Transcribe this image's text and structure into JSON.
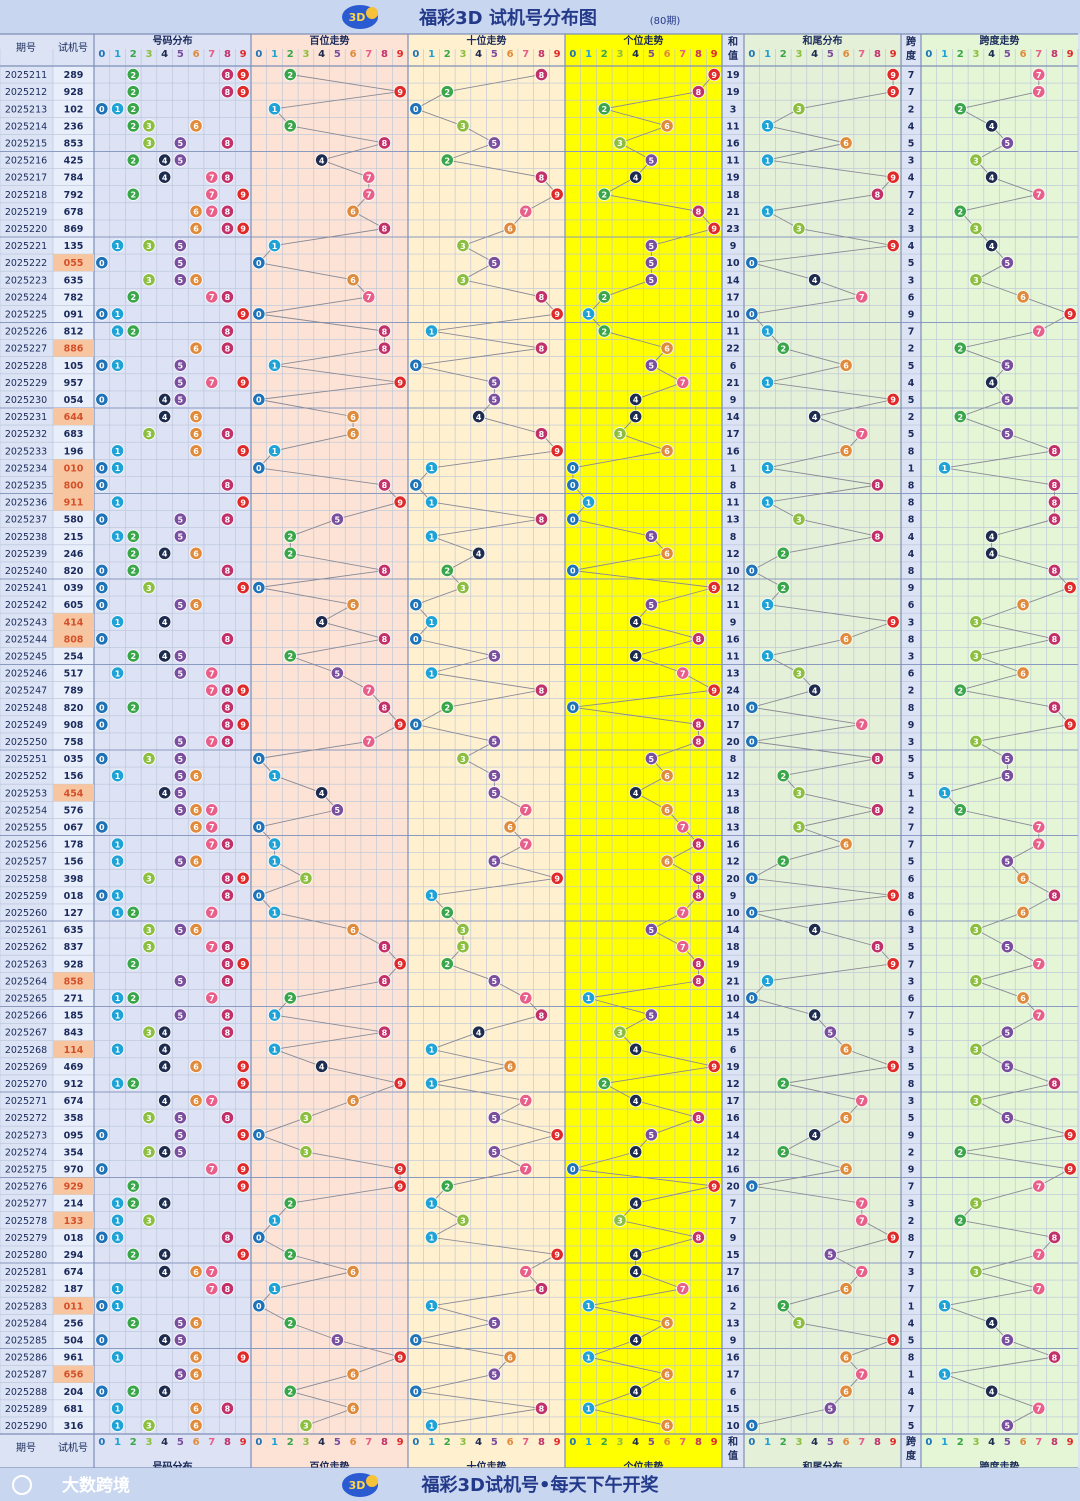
{
  "header": {
    "title": "福彩3D 试机号分布图",
    "subtitle": "(80期)",
    "logo_text": "3D"
  },
  "footer": {
    "slogan": "福彩3D试机号•每天下午开奖",
    "watermark": "大数跨境"
  },
  "columns": {
    "period": "期号",
    "number": "试机号",
    "dist": "号码分布",
    "hundreds": "百位走势",
    "tens": "十位走势",
    "units": "个位走势",
    "sum": "和值",
    "sum_tail": "和尾分布",
    "span": "跨度",
    "span_trend": "跨度走势",
    "digits": [
      "0",
      "1",
      "2",
      "3",
      "4",
      "5",
      "6",
      "7",
      "8",
      "9"
    ]
  },
  "colors": {
    "d0": "#1e73b8",
    "d1": "#1fa3d6",
    "d2": "#3aa64a",
    "d3": "#8cbf3f",
    "d4": "#1d2b4f",
    "d5": "#7a4e9e",
    "d6": "#e08a3c",
    "d7": "#e8608a",
    "d8": "#c2306a",
    "d9": "#e02a2a",
    "bg_dist": "#dde3f5",
    "bg_hund": "#fce3d6",
    "bg_tens": "#fff0d0",
    "bg_units": "#ffff00",
    "bg_sumtail": "#e5f0d8",
    "bg_span": "#e4f6d6",
    "highlight_number": "#f7c6a0"
  },
  "chart_data": {
    "type": "table",
    "title": "福彩3D 试机号分布图",
    "periods": [
      "2025211",
      "2025212",
      "2025213",
      "2025214",
      "2025215",
      "2025216",
      "2025217",
      "2025218",
      "2025219",
      "2025220",
      "2025221",
      "2025222",
      "2025223",
      "2025224",
      "2025225",
      "2025226",
      "2025227",
      "2025228",
      "2025229",
      "2025230",
      "2025231",
      "2025232",
      "2025233",
      "2025234",
      "2025235",
      "2025236",
      "2025237",
      "2025238",
      "2025239",
      "2025240",
      "2025241",
      "2025242",
      "2025243",
      "2025244",
      "2025245",
      "2025246",
      "2025247",
      "2025248",
      "2025249",
      "2025250",
      "2025251",
      "2025252",
      "2025253",
      "2025254",
      "2025255",
      "2025256",
      "2025257",
      "2025258",
      "2025259",
      "2025260",
      "2025261",
      "2025262",
      "2025263",
      "2025264",
      "2025265",
      "2025266",
      "2025267",
      "2025268",
      "2025269",
      "2025270",
      "2025271",
      "2025272",
      "2025273",
      "2025274",
      "2025275",
      "2025276",
      "2025277",
      "2025278",
      "2025279",
      "2025280",
      "2025281",
      "2025282",
      "2025283",
      "2025284",
      "2025285",
      "2025286",
      "2025287",
      "2025288",
      "2025289",
      "2025290"
    ],
    "numbers": [
      "289",
      "928",
      "102",
      "236",
      "853",
      "425",
      "784",
      "792",
      "678",
      "869",
      "135",
      "055",
      "635",
      "782",
      "091",
      "812",
      "886",
      "105",
      "957",
      "054",
      "644",
      "683",
      "196",
      "010",
      "800",
      "911",
      "580",
      "215",
      "246",
      "820",
      "039",
      "605",
      "414",
      "808",
      "254",
      "517",
      "789",
      "820",
      "908",
      "758",
      "035",
      "156",
      "454",
      "576",
      "067",
      "178",
      "156",
      "398",
      "018",
      "127",
      "635",
      "837",
      "928",
      "858",
      "271",
      "185",
      "843",
      "114",
      "469",
      "912",
      "674",
      "358",
      "095",
      "354",
      "970",
      "929",
      "214",
      "133",
      "018",
      "294",
      "674",
      "187",
      "011",
      "256",
      "504",
      "961",
      "656",
      "204",
      "681",
      "316"
    ],
    "sums": [
      19,
      19,
      3,
      11,
      16,
      11,
      19,
      18,
      21,
      23,
      9,
      10,
      14,
      17,
      10,
      11,
      22,
      6,
      21,
      9,
      14,
      17,
      16,
      1,
      8,
      11,
      13,
      8,
      12,
      10,
      12,
      11,
      9,
      16,
      11,
      13,
      24,
      10,
      17,
      20,
      8,
      12,
      13,
      18,
      13,
      16,
      12,
      20,
      9,
      10,
      14,
      18,
      19,
      21,
      10,
      14,
      15,
      6,
      19,
      12,
      17,
      16,
      14,
      12,
      16,
      20,
      7,
      7,
      9,
      15,
      17,
      16,
      2,
      13,
      9,
      16,
      17,
      6,
      15,
      10
    ],
    "spans": [
      7,
      7,
      2,
      4,
      5,
      3,
      4,
      7,
      2,
      3,
      4,
      5,
      3,
      6,
      9,
      7,
      2,
      5,
      4,
      5,
      2,
      5,
      8,
      1,
      8,
      8,
      8,
      4,
      4,
      8,
      9,
      6,
      3,
      8,
      3,
      6,
      2,
      8,
      9,
      3,
      5,
      5,
      1,
      2,
      7,
      7,
      5,
      6,
      8,
      6,
      3,
      5,
      7,
      3,
      6,
      7,
      5,
      3,
      5,
      8,
      3,
      5,
      9,
      2,
      9,
      7,
      3,
      2,
      8,
      7,
      3,
      7,
      1,
      4,
      5,
      8,
      1,
      4,
      7,
      5
    ]
  }
}
